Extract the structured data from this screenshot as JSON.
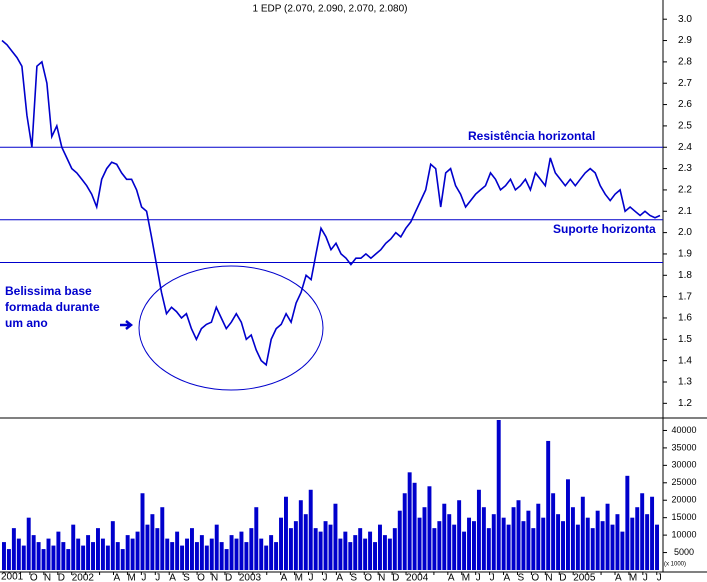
{
  "chart_data": {
    "type": "line",
    "title": "1 EDP (2.070, 2.090, 2.070, 2.080)",
    "color": "#0000cc",
    "x_labels": [
      "2001",
      "O",
      "N",
      "D",
      "2002",
      null,
      null,
      "A",
      "M",
      "J",
      "J",
      "A",
      "S",
      "O",
      "N",
      "D",
      "2003",
      null,
      null,
      "A",
      "M",
      "J",
      "J",
      "A",
      "S",
      "O",
      "N",
      "D",
      "2004",
      null,
      null,
      "A",
      "M",
      "J",
      "J",
      "A",
      "S",
      "O",
      "N",
      "D",
      "2005",
      null,
      null,
      "A",
      "M",
      "J",
      "J"
    ],
    "values": [
      2.9,
      2.88,
      2.85,
      2.82,
      2.78,
      2.55,
      2.4,
      2.78,
      2.8,
      2.7,
      2.45,
      2.5,
      2.4,
      2.35,
      2.3,
      2.28,
      2.25,
      2.22,
      2.18,
      2.12,
      2.25,
      2.3,
      2.33,
      2.32,
      2.28,
      2.25,
      2.25,
      2.2,
      2.12,
      2.1,
      1.98,
      1.85,
      1.72,
      1.62,
      1.65,
      1.63,
      1.6,
      1.62,
      1.55,
      1.5,
      1.55,
      1.57,
      1.58,
      1.65,
      1.6,
      1.55,
      1.58,
      1.62,
      1.58,
      1.5,
      1.52,
      1.45,
      1.4,
      1.38,
      1.5,
      1.55,
      1.57,
      1.62,
      1.58,
      1.67,
      1.72,
      1.8,
      1.78,
      1.9,
      2.02,
      1.98,
      1.92,
      1.95,
      1.9,
      1.88,
      1.85,
      1.88,
      1.88,
      1.9,
      1.88,
      1.9,
      1.92,
      1.95,
      1.97,
      2.0,
      1.98,
      2.02,
      2.05,
      2.1,
      2.15,
      2.2,
      2.32,
      2.3,
      2.12,
      2.28,
      2.3,
      2.22,
      2.18,
      2.12,
      2.15,
      2.18,
      2.2,
      2.22,
      2.28,
      2.25,
      2.2,
      2.22,
      2.25,
      2.2,
      2.22,
      2.25,
      2.2,
      2.28,
      2.25,
      2.22,
      2.35,
      2.28,
      2.25,
      2.22,
      2.25,
      2.22,
      2.25,
      2.28,
      2.3,
      2.28,
      2.22,
      2.18,
      2.15,
      2.18,
      2.2,
      2.1,
      2.12,
      2.1,
      2.08,
      2.1,
      2.08,
      2.07,
      2.08
    ],
    "ylim": [
      1.15,
      3.09
    ],
    "yticks": [
      {
        "value": 3,
        "label": "3.0"
      },
      2.9,
      2.8,
      2.7,
      2.6,
      2.5,
      2.4,
      2.3,
      2.2,
      2.1,
      {
        "value": 2,
        "label": "2.0"
      },
      1.9,
      1.8,
      1.7,
      1.6,
      1.5,
      1.4,
      1.3,
      1.2
    ],
    "hlines": [
      2.4,
      2.06,
      1.86
    ],
    "annotations": [
      "Resistência horizontal",
      "Suporte horizonta",
      "Belissima base",
      "formada durante",
      "um ano"
    ],
    "volume": [
      8000,
      6000,
      12000,
      9000,
      7000,
      15000,
      10000,
      8000,
      6000,
      9000,
      7000,
      11000,
      8000,
      6000,
      13000,
      9000,
      7000,
      10000,
      8000,
      12000,
      9000,
      7000,
      14000,
      8000,
      6000,
      10000,
      9000,
      11000,
      22000,
      13000,
      16000,
      12000,
      18000,
      9000,
      8000,
      11000,
      7000,
      9000,
      12000,
      8000,
      10000,
      7000,
      9000,
      13000,
      8000,
      6000,
      10000,
      9000,
      11000,
      8000,
      12000,
      18000,
      9000,
      7000,
      10000,
      8000,
      15000,
      21000,
      12000,
      14000,
      20000,
      16000,
      23000,
      12000,
      11000,
      14000,
      13000,
      19000,
      9000,
      11000,
      8000,
      10000,
      12000,
      9000,
      11000,
      8000,
      13000,
      10000,
      9000,
      12000,
      17000,
      22000,
      28000,
      25000,
      15000,
      18000,
      24000,
      12000,
      14000,
      19000,
      16000,
      13000,
      20000,
      11000,
      15000,
      14000,
      23000,
      18000,
      12000,
      16000,
      43000,
      15000,
      13000,
      18000,
      20000,
      14000,
      17000,
      12000,
      19000,
      15000,
      37000,
      22000,
      16000,
      14000,
      26000,
      18000,
      13000,
      21000,
      15000,
      12000,
      17000,
      14000,
      19000,
      13000,
      16000,
      11000,
      27000,
      15000,
      18000,
      22000,
      16000,
      21000,
      13000
    ],
    "volume_ylim": [
      0,
      43000
    ],
    "volume_yticks": [
      5000,
      10000,
      15000,
      20000,
      25000,
      30000,
      35000,
      40000
    ],
    "volume_unit": "(x 1000)"
  }
}
